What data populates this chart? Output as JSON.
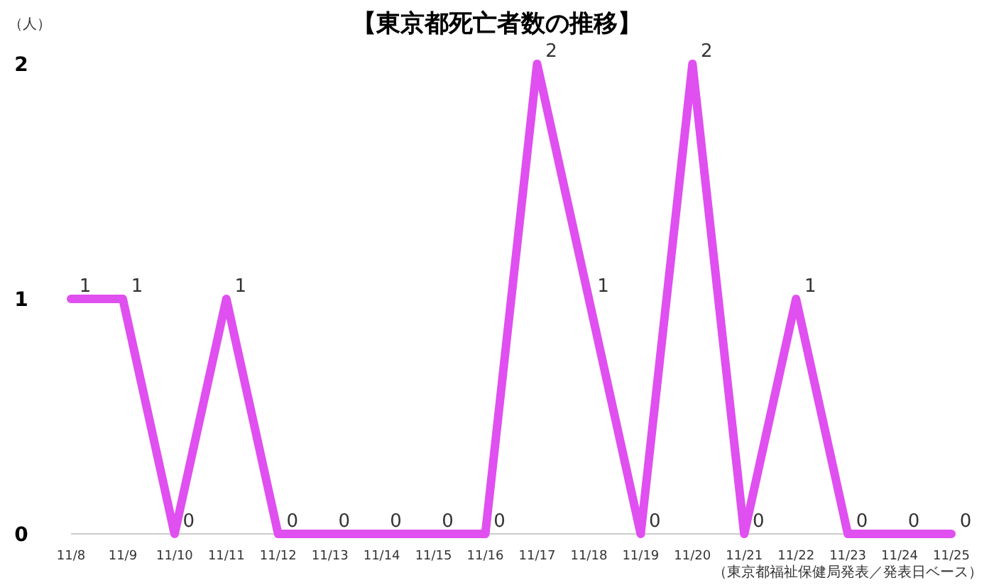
{
  "chart_data": {
    "type": "line",
    "title": "【東京都死亡者数の推移】",
    "ylabel": "（人）",
    "categories": [
      "11/8",
      "11/9",
      "11/10",
      "11/11",
      "11/12",
      "11/13",
      "11/14",
      "11/15",
      "11/16",
      "11/17",
      "11/18",
      "11/19",
      "11/20",
      "11/21",
      "11/22",
      "11/23",
      "11/24",
      "11/25"
    ],
    "series": [
      {
        "color": "#e04ff0",
        "values": [
          1,
          1,
          0,
          1,
          0,
          0,
          0,
          0,
          0,
          2,
          1,
          0,
          2,
          0,
          1,
          0,
          0,
          0
        ]
      }
    ],
    "ylim": [
      0,
      2
    ],
    "yticks": [
      0,
      1,
      2
    ],
    "grid": false,
    "marker": "none",
    "line_style": "solid",
    "data_labels": true,
    "annotations": [
      "（東京都福祉保健局発表／発表日ベース）"
    ]
  }
}
